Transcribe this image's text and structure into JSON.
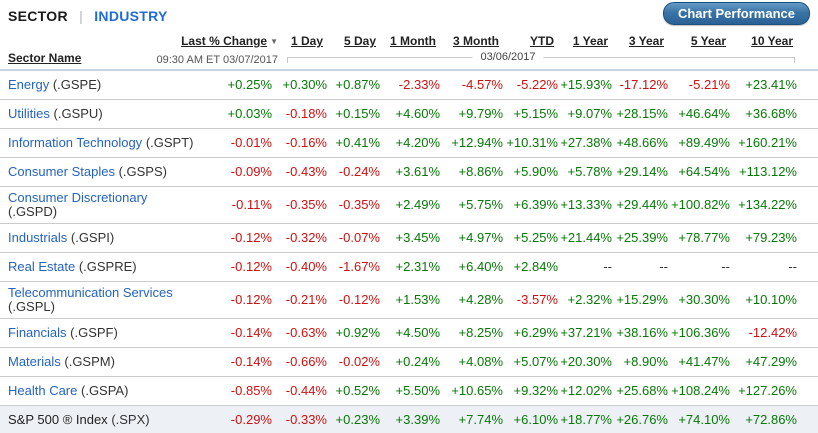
{
  "tabs": {
    "sector": "SECTOR",
    "separator": "|",
    "industry": "INDUSTRY"
  },
  "toolbar": {
    "chart_performance_label": "Chart Performance"
  },
  "header": {
    "sector_name": "Sector Name",
    "last_change": "Last % Change",
    "sort_arrow": "▼",
    "timestamp": "09:30 AM ET 03/07/2017",
    "period_date": "03/06/2017",
    "periods": [
      "1 Day",
      "5 Day",
      "1 Month",
      "3 Month",
      "YTD",
      "1 Year",
      "3 Year",
      "5 Year",
      "10 Year"
    ]
  },
  "colors": {
    "positive": "#067806",
    "negative": "#cc1111",
    "link_blue": "#2563c0",
    "industry_tab_blue": "#1f6cd6",
    "button_blue": "#2a6195",
    "highlight_row_bg": "#edf1f6"
  },
  "rows": [
    {
      "name": "Energy",
      "ticker": "(.GSPE)",
      "values": [
        "+0.25%",
        "+0.30%",
        "+0.87%",
        "-2.33%",
        "-4.57%",
        "-5.22%",
        "+15.93%",
        "-17.12%",
        "-5.21%",
        "+23.41%"
      ]
    },
    {
      "name": "Utilities",
      "ticker": "(.GSPU)",
      "values": [
        "+0.03%",
        "-0.18%",
        "+0.15%",
        "+4.60%",
        "+9.79%",
        "+5.15%",
        "+9.07%",
        "+28.15%",
        "+46.64%",
        "+36.68%"
      ]
    },
    {
      "name": "Information Technology",
      "ticker": "(.GSPT)",
      "values": [
        "-0.01%",
        "-0.16%",
        "+0.41%",
        "+4.20%",
        "+12.94%",
        "+10.31%",
        "+27.38%",
        "+48.66%",
        "+89.49%",
        "+160.21%"
      ]
    },
    {
      "name": "Consumer Staples",
      "ticker": "(.GSPS)",
      "values": [
        "-0.09%",
        "-0.43%",
        "-0.24%",
        "+3.61%",
        "+8.86%",
        "+5.90%",
        "+5.78%",
        "+29.14%",
        "+64.54%",
        "+113.12%"
      ]
    },
    {
      "name": "Consumer Discretionary",
      "ticker": "(.GSPD)",
      "wrap": true,
      "values": [
        "-0.11%",
        "-0.35%",
        "-0.35%",
        "+2.49%",
        "+5.75%",
        "+6.39%",
        "+13.33%",
        "+29.44%",
        "+100.82%",
        "+134.22%"
      ]
    },
    {
      "name": "Industrials",
      "ticker": "(.GSPI)",
      "values": [
        "-0.12%",
        "-0.32%",
        "-0.07%",
        "+3.45%",
        "+4.97%",
        "+5.25%",
        "+21.44%",
        "+25.39%",
        "+78.77%",
        "+79.23%"
      ]
    },
    {
      "name": "Real Estate",
      "ticker": "(.GSPRE)",
      "values": [
        "-0.12%",
        "-0.40%",
        "-1.67%",
        "+2.31%",
        "+6.40%",
        "+2.84%",
        "--",
        "--",
        "--",
        "--"
      ]
    },
    {
      "name": "Telecommunication Services",
      "ticker": "(.GSPL)",
      "wrap": true,
      "values": [
        "-0.12%",
        "-0.21%",
        "-0.12%",
        "+1.53%",
        "+4.28%",
        "-3.57%",
        "+2.32%",
        "+15.29%",
        "+30.30%",
        "+10.10%"
      ]
    },
    {
      "name": "Financials",
      "ticker": "(.GSPF)",
      "values": [
        "-0.14%",
        "-0.63%",
        "+0.92%",
        "+4.50%",
        "+8.25%",
        "+6.29%",
        "+37.21%",
        "+38.16%",
        "+106.36%",
        "-12.42%"
      ]
    },
    {
      "name": "Materials",
      "ticker": "(.GSPM)",
      "values": [
        "-0.14%",
        "-0.66%",
        "-0.02%",
        "+0.24%",
        "+4.08%",
        "+5.07%",
        "+20.30%",
        "+8.90%",
        "+41.47%",
        "+47.29%"
      ]
    },
    {
      "name": "Health Care",
      "ticker": "(.GSPA)",
      "values": [
        "-0.85%",
        "-0.44%",
        "+0.52%",
        "+5.50%",
        "+10.65%",
        "+9.32%",
        "+12.02%",
        "+25.68%",
        "+108.24%",
        "+127.26%"
      ]
    },
    {
      "name": "S&P 500 ® Index",
      "ticker": "(.SPX)",
      "highlight": true,
      "values": [
        "-0.29%",
        "-0.33%",
        "+0.23%",
        "+3.39%",
        "+7.74%",
        "+6.10%",
        "+18.77%",
        "+26.76%",
        "+74.10%",
        "+72.86%"
      ]
    }
  ]
}
